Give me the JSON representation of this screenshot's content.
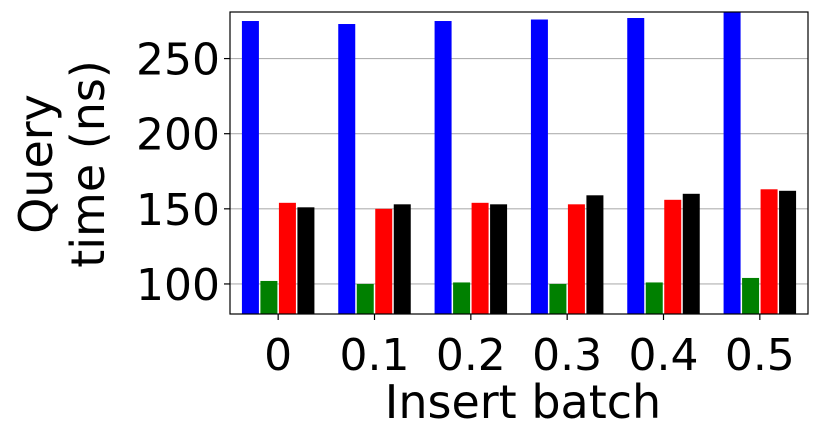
{
  "chart_data": {
    "type": "bar",
    "x_label": "Insert batch",
    "y_label": [
      "Query",
      "time (ns)"
    ],
    "categories": [
      "0",
      "0.1",
      "0.2",
      "0.3",
      "0.4",
      "0.5"
    ],
    "series": [
      {
        "color": "#0000ff",
        "values": [
          275,
          273,
          275,
          276,
          277,
          281
        ]
      },
      {
        "color": "#008000",
        "values": [
          102,
          100,
          101,
          100,
          101,
          104
        ]
      },
      {
        "color": "#ff0000",
        "values": [
          154,
          150,
          154,
          153,
          156,
          163
        ]
      },
      {
        "color": "#000000",
        "values": [
          151,
          153,
          153,
          159,
          160,
          162
        ]
      }
    ],
    "ylim": [
      80,
      281
    ],
    "yticks": [
      100,
      150,
      200,
      250
    ],
    "grid": true
  }
}
